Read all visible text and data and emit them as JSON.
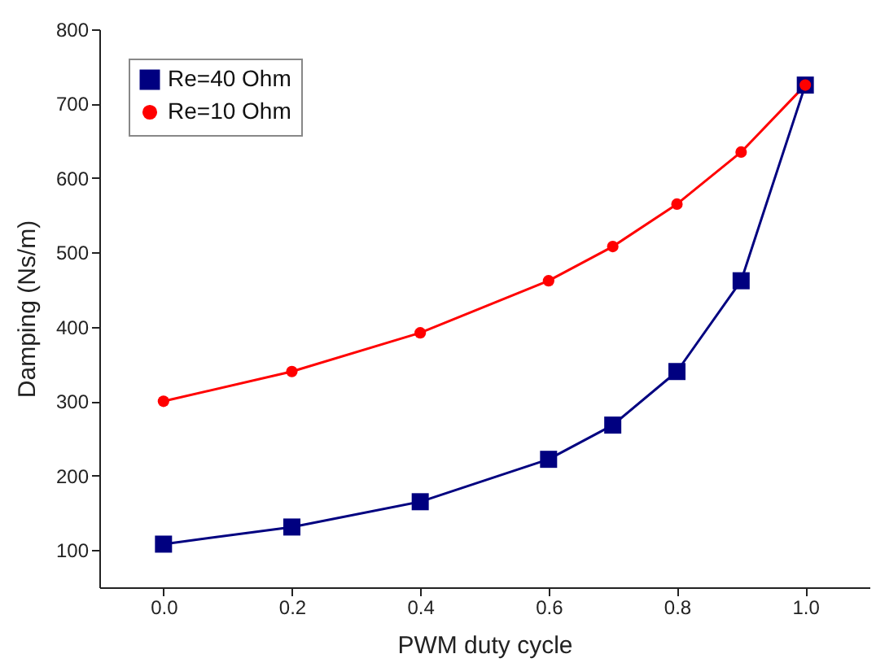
{
  "chart_data": {
    "type": "line",
    "xlabel": "PWM duty cycle",
    "ylabel": "Damping (Ns/m)",
    "x": [
      0,
      0.2,
      0.4,
      0.6,
      0.7,
      0.8,
      0.9,
      1.0
    ],
    "series": [
      {
        "name": "Re=40 Ohm",
        "color": "#000080",
        "marker": "square",
        "values": [
          108,
          131,
          165,
          222,
          268,
          340,
          462,
          725
        ]
      },
      {
        "name": "Re=10 Ohm",
        "color": "#ff0000",
        "marker": "circle",
        "values": [
          300,
          340,
          392,
          462,
          508,
          565,
          635,
          725
        ]
      }
    ],
    "xlim": [
      -0.1,
      1.1
    ],
    "xticks": [
      {
        "value": 0,
        "label": "0.0"
      },
      0.2,
      0.4,
      0.6,
      0.8,
      {
        "value": 1,
        "label": "1.0"
      }
    ],
    "ylim": [
      50,
      800
    ],
    "yticks": [
      100,
      200,
      300,
      400,
      500,
      600,
      700,
      800
    ],
    "grid": false,
    "legend": "top left",
    "line_style": "solid"
  }
}
